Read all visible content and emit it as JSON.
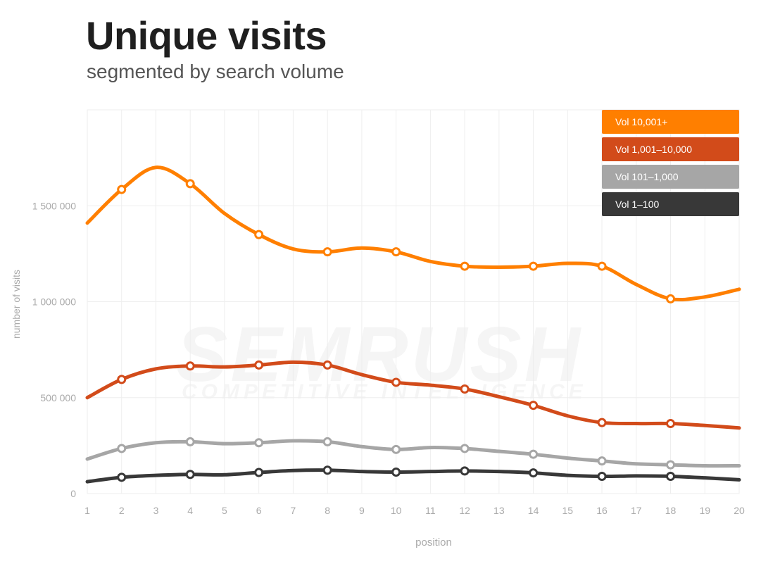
{
  "header": {
    "title": "Unique visits",
    "subtitle": "segmented by search volume"
  },
  "watermark": {
    "brand": "SEMRUSH",
    "tagline": "COMPETITIVE INTELLIGENCE"
  },
  "chart_data": {
    "type": "line",
    "title": "Unique visits",
    "subtitle": "segmented by search volume",
    "xlabel": "position",
    "ylabel": "number of visits",
    "x": [
      1,
      2,
      3,
      4,
      5,
      6,
      7,
      8,
      9,
      10,
      11,
      12,
      13,
      14,
      15,
      16,
      17,
      18,
      19,
      20
    ],
    "xlim": [
      1,
      20
    ],
    "ylim": [
      0,
      2000000
    ],
    "y_ticks": [
      {
        "value": 0,
        "label": "0"
      },
      {
        "value": 500000,
        "label": "500 000"
      },
      {
        "value": 1000000,
        "label": "1 000 000"
      },
      {
        "value": 1500000,
        "label": "1 500 000"
      }
    ],
    "grid": true,
    "legend_position": "top-right",
    "marker_positions": [
      2,
      4,
      6,
      8,
      10,
      12,
      14,
      16,
      18
    ],
    "series": [
      {
        "name": "Vol 10,001+",
        "color": "#ff7f00",
        "values": [
          1410000,
          1585000,
          1700000,
          1615000,
          1460000,
          1350000,
          1275000,
          1260000,
          1280000,
          1260000,
          1210000,
          1185000,
          1180000,
          1185000,
          1200000,
          1185000,
          1090000,
          1015000,
          1025000,
          1065000
        ]
      },
      {
        "name": "Vol 1,001–10,000",
        "color": "#d24b1a",
        "values": [
          500000,
          595000,
          650000,
          665000,
          660000,
          670000,
          685000,
          670000,
          620000,
          580000,
          565000,
          545000,
          505000,
          460000,
          405000,
          370000,
          365000,
          365000,
          355000,
          342000
        ]
      },
      {
        "name": "Vol 101–1,000",
        "color": "#a6a6a6",
        "values": [
          180000,
          235000,
          265000,
          270000,
          260000,
          265000,
          275000,
          270000,
          245000,
          230000,
          240000,
          235000,
          220000,
          205000,
          185000,
          170000,
          155000,
          150000,
          145000,
          145000
        ]
      },
      {
        "name": "Vol 1–100",
        "color": "#383838",
        "values": [
          62000,
          85000,
          95000,
          100000,
          98000,
          110000,
          120000,
          122000,
          115000,
          112000,
          115000,
          118000,
          115000,
          108000,
          95000,
          90000,
          92000,
          90000,
          82000,
          72000
        ]
      }
    ]
  }
}
